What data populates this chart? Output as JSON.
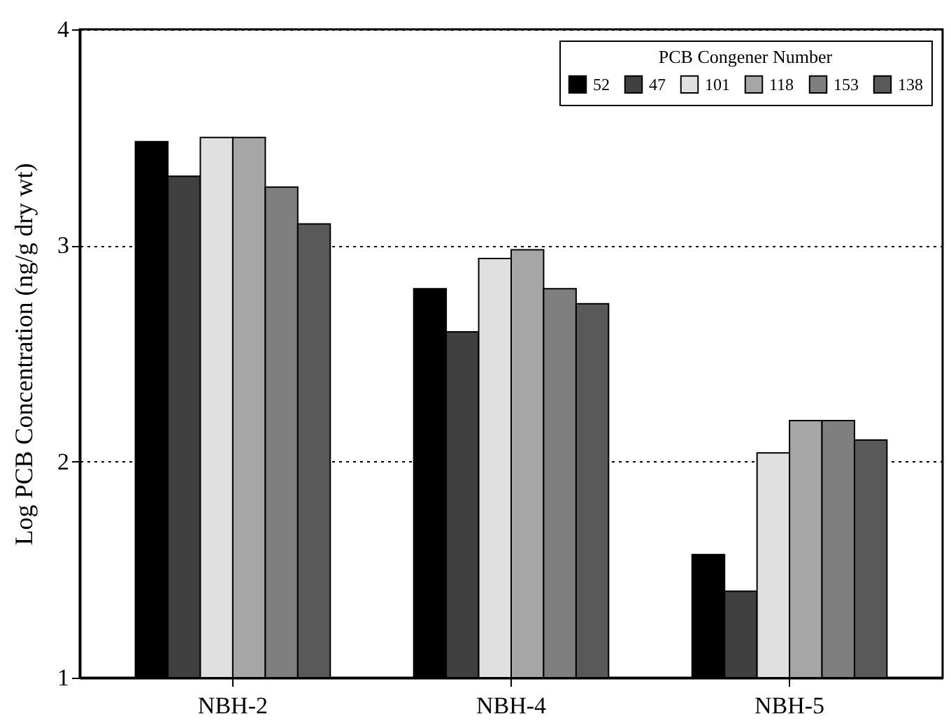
{
  "chart_data": {
    "type": "bar",
    "ylabel": "Log PCB Concentration (ng/g dry wt)",
    "legend_title": "PCB Congener Number",
    "categories": [
      "NBH-2",
      "NBH-4",
      "NBH-5"
    ],
    "series": [
      {
        "name": "52",
        "color": "#000000",
        "values": [
          3.48,
          2.8,
          1.57
        ]
      },
      {
        "name": "47",
        "color": "#404040",
        "values": [
          3.32,
          2.6,
          1.4
        ]
      },
      {
        "name": "101",
        "color": "#e0e0e0",
        "values": [
          3.5,
          2.94,
          2.04
        ]
      },
      {
        "name": "118",
        "color": "#a6a6a6",
        "values": [
          3.5,
          2.98,
          2.19
        ]
      },
      {
        "name": "153",
        "color": "#7f7f7f",
        "values": [
          3.27,
          2.8,
          2.19
        ]
      },
      {
        "name": "138",
        "color": "#595959",
        "values": [
          3.1,
          2.73,
          2.1
        ]
      }
    ],
    "ylim": [
      1,
      4
    ],
    "yticks": [
      1,
      2,
      3,
      4
    ],
    "grid": "y",
    "legend": "top right"
  }
}
